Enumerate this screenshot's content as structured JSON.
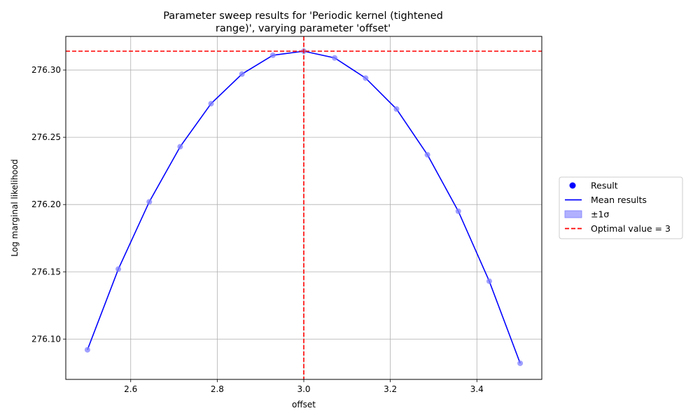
{
  "chart_data": {
    "type": "line",
    "title_lines": [
      "Parameter sweep results for 'Periodic kernel (tightened",
      "range)', varying parameter 'offset'"
    ],
    "xlabel": "offset",
    "ylabel": "Log marginal likelihood",
    "xlim": [
      2.45,
      3.55
    ],
    "ylim": [
      276.07,
      276.325
    ],
    "x_ticks": [
      2.6,
      2.8,
      3.0,
      3.2,
      3.4
    ],
    "x_tick_labels": [
      "2.6",
      "2.8",
      "3.0",
      "3.2",
      "3.4"
    ],
    "y_ticks": [
      276.1,
      276.15,
      276.2,
      276.25,
      276.3
    ],
    "y_tick_labels": [
      "276.10",
      "276.15",
      "276.20",
      "276.25",
      "276.30"
    ],
    "grid": true,
    "x": [
      2.5,
      2.5714,
      2.6429,
      2.7143,
      2.7857,
      2.8571,
      2.9286,
      3.0,
      3.0714,
      3.1429,
      3.2143,
      3.2857,
      3.3571,
      3.4286,
      3.5
    ],
    "series": [
      {
        "name": "Result",
        "kind": "points",
        "color": "#8080ff",
        "values": [
          276.092,
          276.152,
          276.202,
          276.243,
          276.275,
          276.297,
          276.311,
          276.314,
          276.309,
          276.294,
          276.271,
          276.237,
          276.195,
          276.143,
          276.082
        ]
      },
      {
        "name": "Mean results",
        "kind": "line",
        "color": "#0000ff",
        "values": [
          276.092,
          276.152,
          276.202,
          276.243,
          276.275,
          276.297,
          276.311,
          276.314,
          276.309,
          276.294,
          276.271,
          276.237,
          276.195,
          276.143,
          276.082
        ]
      }
    ],
    "optimal": {
      "label": "Optimal value = 3",
      "x": 3.0,
      "y": 276.314,
      "color": "#ff0000"
    },
    "legend": {
      "placement": "right-outside",
      "entries": [
        {
          "label": "Result",
          "kind": "marker",
          "color": "#0000ff"
        },
        {
          "label": "Mean results",
          "kind": "line",
          "color": "#0000ff"
        },
        {
          "label": "±1σ",
          "kind": "patch",
          "color": "#b0b0ff"
        },
        {
          "label": "Optimal value = 3",
          "kind": "dashed",
          "color": "#ff0000"
        }
      ]
    }
  }
}
